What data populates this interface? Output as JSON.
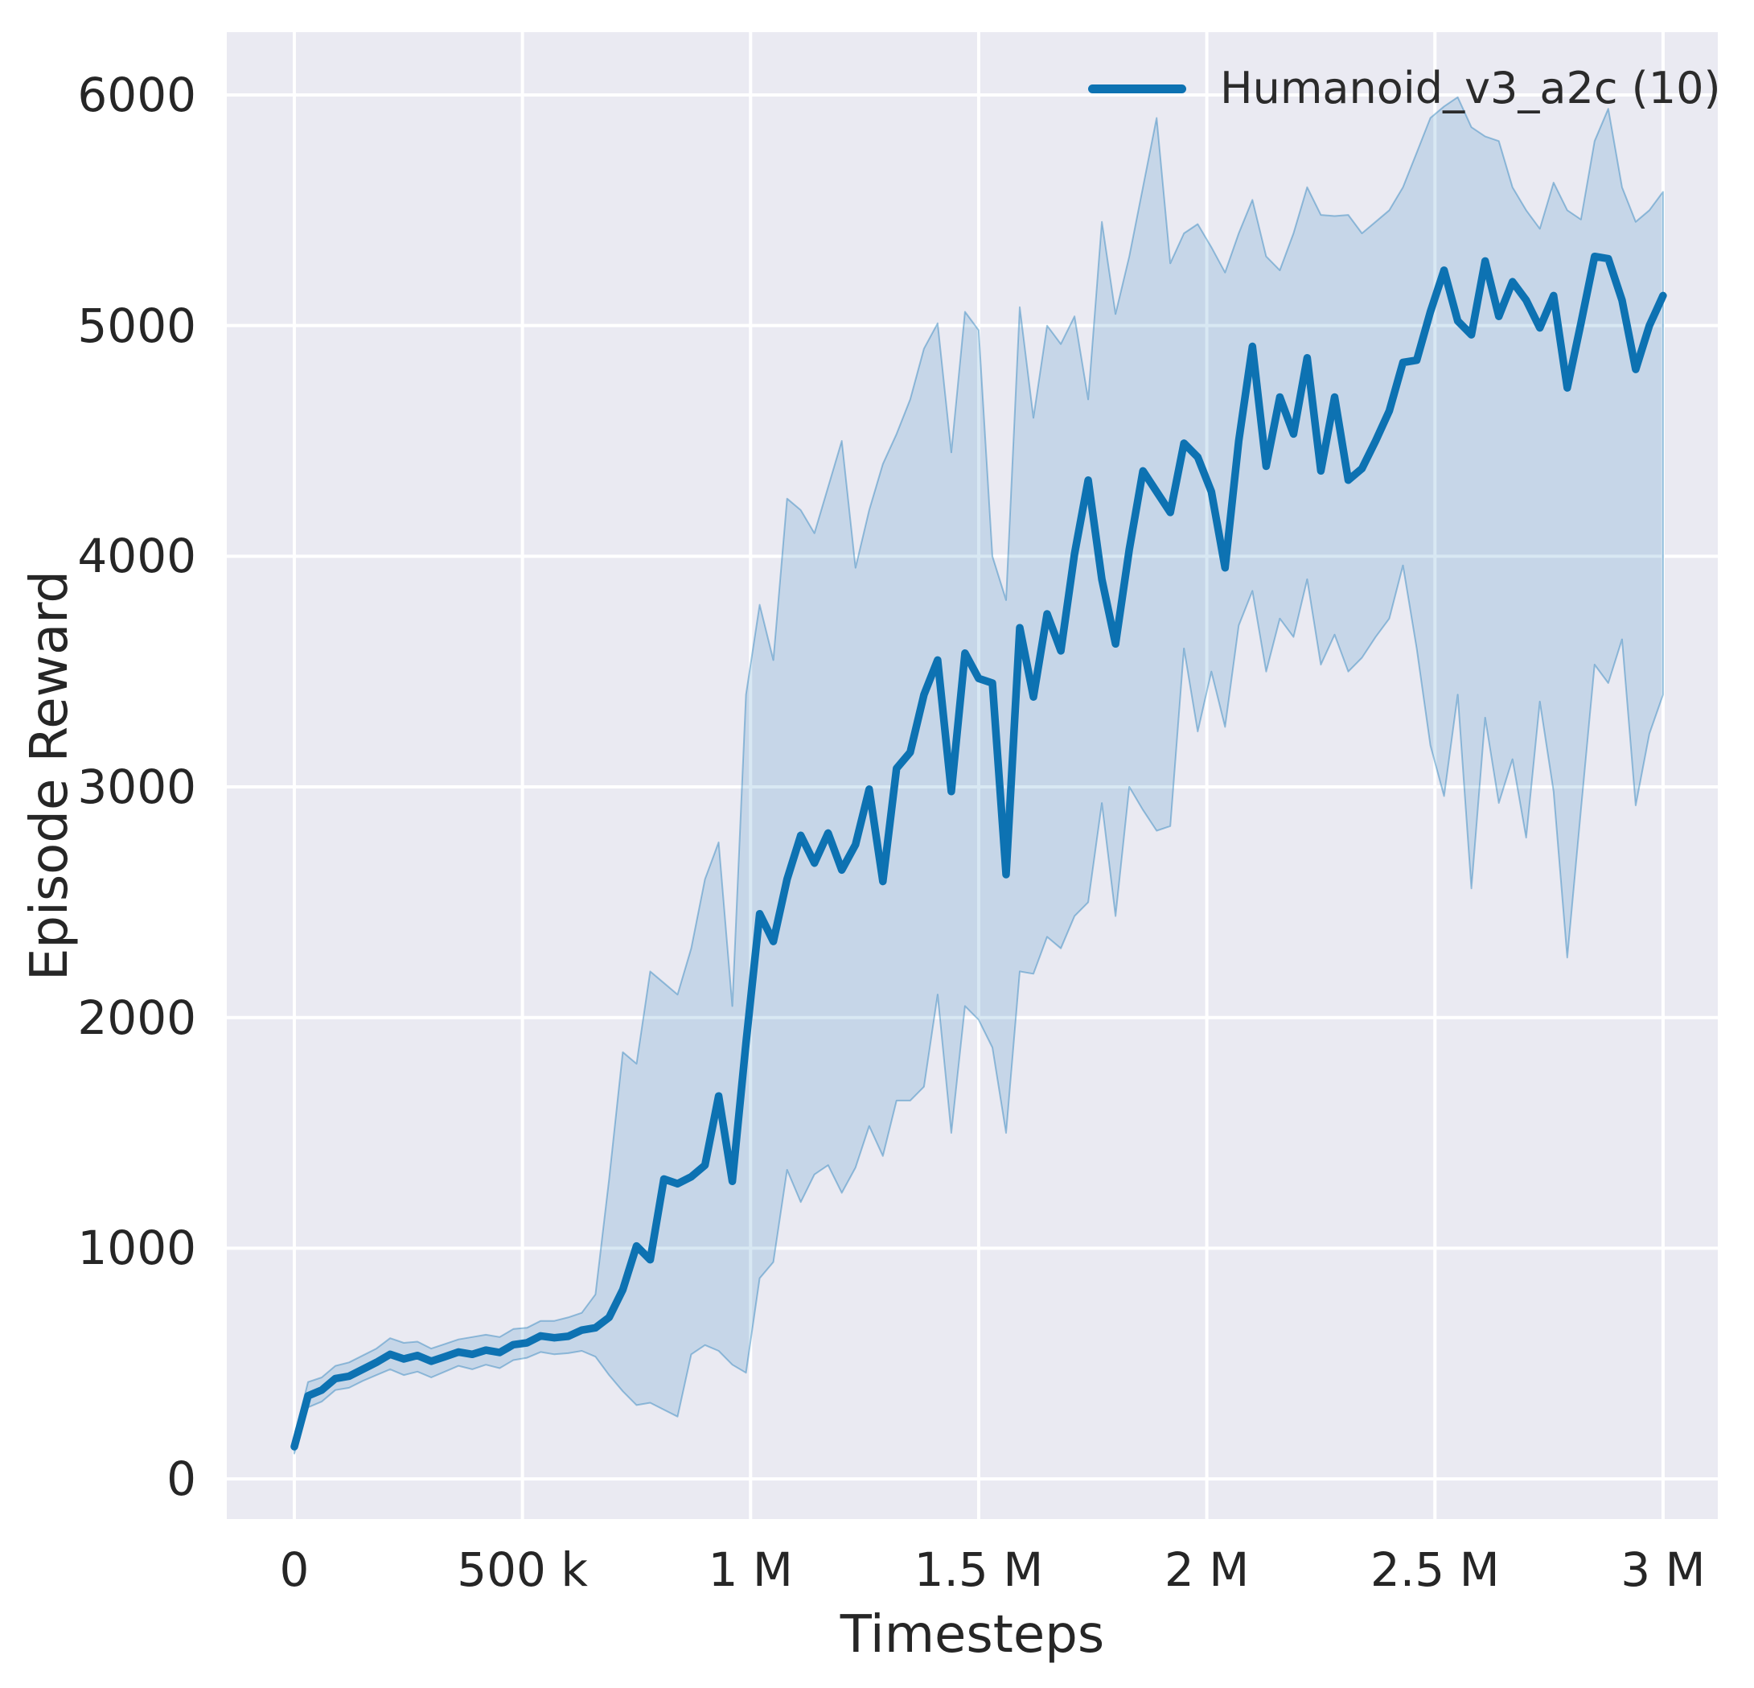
{
  "figure": {
    "colors": {
      "line": "#0d72b2",
      "band_fill": "rgba(13,114,178,0.16)",
      "band_edge": "rgba(13,114,178,0.38)",
      "axes_background": "#eaeaf2",
      "gridline": "#ffffff",
      "text": "#262626",
      "figure_background": "#ffffff"
    }
  },
  "chart_data": {
    "type": "line",
    "title": "",
    "xlabel": "Timesteps",
    "ylabel": "Episode Reward",
    "grid": true,
    "legend_position": "upper right",
    "x_unit_note": "x values stored in thousands of timesteps",
    "xlim_k": [
      -148,
      3120
    ],
    "ylim": [
      -174,
      6272
    ],
    "x_ticks": [
      {
        "value_k": 0,
        "label": "0"
      },
      {
        "value_k": 500,
        "label": "500 k"
      },
      {
        "value_k": 1000,
        "label": "1 M"
      },
      {
        "value_k": 1500,
        "label": "1.5 M"
      },
      {
        "value_k": 2000,
        "label": "2 M"
      },
      {
        "value_k": 2500,
        "label": "2.5 M"
      },
      {
        "value_k": 3000,
        "label": "3 M"
      }
    ],
    "y_ticks": [
      {
        "value": 0,
        "label": "0"
      },
      {
        "value": 1000,
        "label": "1000"
      },
      {
        "value": 2000,
        "label": "2000"
      },
      {
        "value": 3000,
        "label": "3000"
      },
      {
        "value": 4000,
        "label": "4000"
      },
      {
        "value": 5000,
        "label": "5000"
      },
      {
        "value": 6000,
        "label": "6000"
      }
    ],
    "series": [
      {
        "name": "Humanoid_v3_a2c (10)",
        "x_k": [
          0,
          30,
          60,
          90,
          120,
          150,
          180,
          210,
          240,
          270,
          300,
          330,
          360,
          390,
          420,
          450,
          480,
          510,
          540,
          570,
          600,
          630,
          660,
          690,
          720,
          750,
          780,
          810,
          840,
          870,
          900,
          930,
          960,
          990,
          1020,
          1050,
          1080,
          1110,
          1140,
          1170,
          1200,
          1230,
          1260,
          1290,
          1320,
          1350,
          1380,
          1410,
          1440,
          1470,
          1500,
          1530,
          1560,
          1590,
          1620,
          1650,
          1680,
          1710,
          1740,
          1770,
          1800,
          1830,
          1860,
          1890,
          1920,
          1950,
          1980,
          2010,
          2040,
          2070,
          2100,
          2130,
          2160,
          2190,
          2220,
          2250,
          2280,
          2310,
          2340,
          2370,
          2400,
          2430,
          2460,
          2490,
          2520,
          2550,
          2580,
          2610,
          2640,
          2670,
          2700,
          2730,
          2760,
          2790,
          2820,
          2850,
          2880,
          2910,
          2940,
          2970,
          3000
        ],
        "mean": [
          140,
          360,
          385,
          435,
          445,
          475,
          505,
          540,
          520,
          535,
          510,
          530,
          550,
          540,
          558,
          548,
          582,
          590,
          620,
          612,
          618,
          645,
          655,
          700,
          820,
          1010,
          950,
          1300,
          1280,
          1310,
          1360,
          1660,
          1290,
          1890,
          2450,
          2330,
          2600,
          2790,
          2670,
          2800,
          2640,
          2750,
          2990,
          2590,
          3080,
          3150,
          3400,
          3550,
          2980,
          3580,
          3470,
          3450,
          2620,
          3690,
          3390,
          3750,
          3590,
          4010,
          4330,
          3900,
          3620,
          4030,
          4370,
          4280,
          4190,
          4490,
          4430,
          4280,
          3950,
          4500,
          4910,
          4390,
          4690,
          4530,
          4860,
          4370,
          4690,
          4330,
          4380,
          4500,
          4630,
          4840,
          4850,
          5060,
          5240,
          5020,
          4960,
          5280,
          5040,
          5190,
          5110,
          4990,
          5130,
          4730,
          5010,
          5300,
          5290,
          5110,
          4810,
          5000,
          5130
        ],
        "band_lower": [
          110,
          310,
          335,
          385,
          395,
          425,
          450,
          475,
          450,
          465,
          440,
          465,
          490,
          475,
          495,
          480,
          515,
          525,
          550,
          540,
          545,
          555,
          530,
          450,
          380,
          320,
          330,
          300,
          270,
          540,
          580,
          555,
          495,
          460,
          870,
          940,
          1340,
          1200,
          1320,
          1360,
          1240,
          1350,
          1530,
          1400,
          1640,
          1640,
          1700,
          2100,
          1500,
          2050,
          1990,
          1870,
          1500,
          2200,
          2190,
          2350,
          2300,
          2440,
          2500,
          2930,
          2440,
          3000,
          2900,
          2810,
          2830,
          3600,
          3240,
          3500,
          3260,
          3700,
          3850,
          3500,
          3730,
          3650,
          3900,
          3530,
          3660,
          3500,
          3560,
          3650,
          3730,
          3960,
          3600,
          3180,
          2960,
          3400,
          2560,
          3300,
          2930,
          3120,
          2780,
          3370,
          2980,
          2260,
          2900,
          3530,
          3450,
          3640,
          2920,
          3230,
          3400
        ],
        "band_upper": [
          180,
          420,
          440,
          490,
          505,
          535,
          565,
          610,
          590,
          595,
          565,
          585,
          605,
          615,
          625,
          615,
          650,
          655,
          685,
          685,
          700,
          720,
          800,
          1300,
          1850,
          1800,
          2200,
          2150,
          2100,
          2300,
          2600,
          2760,
          2050,
          3400,
          3790,
          3550,
          4250,
          4200,
          4100,
          4300,
          4500,
          3950,
          4200,
          4400,
          4530,
          4680,
          4900,
          5010,
          4450,
          5060,
          4980,
          4000,
          3810,
          5080,
          4600,
          5000,
          4920,
          5040,
          4680,
          5450,
          5050,
          5300,
          5600,
          5900,
          5270,
          5400,
          5440,
          5340,
          5230,
          5400,
          5545,
          5300,
          5240,
          5400,
          5600,
          5480,
          5475,
          5480,
          5400,
          5450,
          5500,
          5600,
          5750,
          5900,
          5950,
          5990,
          5860,
          5820,
          5800,
          5600,
          5500,
          5420,
          5620,
          5500,
          5460,
          5800,
          5940,
          5600,
          5450,
          5500,
          5580
        ]
      }
    ]
  }
}
